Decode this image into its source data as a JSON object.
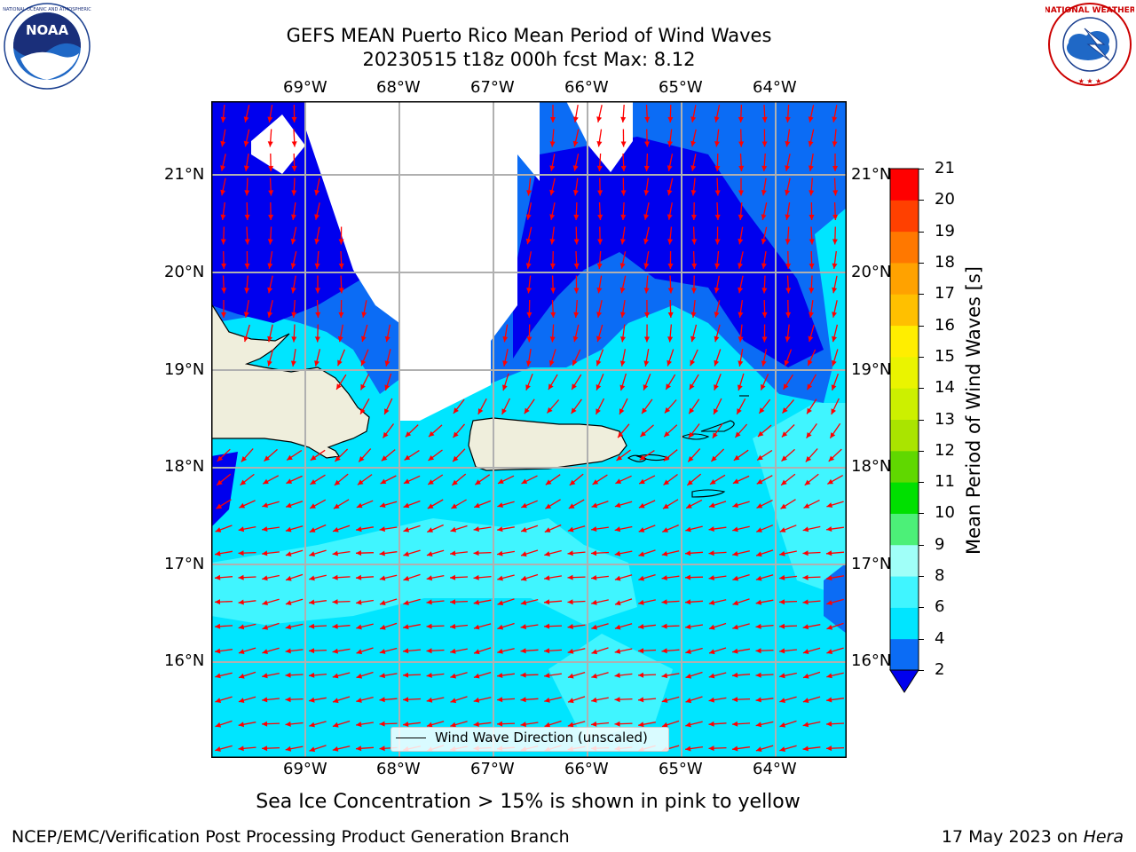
{
  "title_line1": "GEFS MEAN Puerto Rico Mean Period of Wind Waves",
  "title_line2": "20230515 t18z 000h fcst   Max: 8.12",
  "lon_labels": [
    "69°W",
    "68°W",
    "67°W",
    "66°W",
    "65°W",
    "64°W"
  ],
  "lat_labels": [
    "21°N",
    "20°N",
    "19°N",
    "18°N",
    "17°N",
    "16°N"
  ],
  "legend_text": "Wind Wave Direction (unscaled)",
  "colorbar": {
    "label": "Mean Period of Wind Waves [s]",
    "ticks": [
      "2",
      "4",
      "6",
      "8",
      "9",
      "10",
      "11",
      "12",
      "13",
      "14",
      "15",
      "16",
      "17",
      "18",
      "19",
      "20",
      "21"
    ],
    "colors": [
      "#0000ee",
      "#0b6cf5",
      "#00e5ff",
      "#40f5ff",
      "#a0fff8",
      "#4cf078",
      "#00e000",
      "#60d800",
      "#aae400",
      "#ccf000",
      "#eaf400",
      "#ffee00",
      "#ffc000",
      "#ffa200",
      "#ff7800",
      "#ff4000",
      "#ff0000"
    ]
  },
  "ice_note": "Sea Ice Concentration > 15% is shown in pink to yellow",
  "footer_left": "NCEP/EMC/Verification Post Processing Product Generation Branch",
  "footer_right_date": "17 May 2023 on ",
  "footer_right_host": "Hera",
  "logos": {
    "left": "noaa-logo",
    "right": "nws-logo"
  },
  "map": {
    "lon_range": [
      -70,
      -63.25
    ],
    "lat_range": [
      15,
      21.75
    ],
    "colors": {
      "land": "#efeedc",
      "deep_blue": "#0000ee",
      "mid_blue": "#0b6cf5",
      "cyan": "#00e5ff",
      "light_cyan": "#40f5ff",
      "arrow": "#ff0000",
      "grid": "#b0b0b0"
    }
  }
}
